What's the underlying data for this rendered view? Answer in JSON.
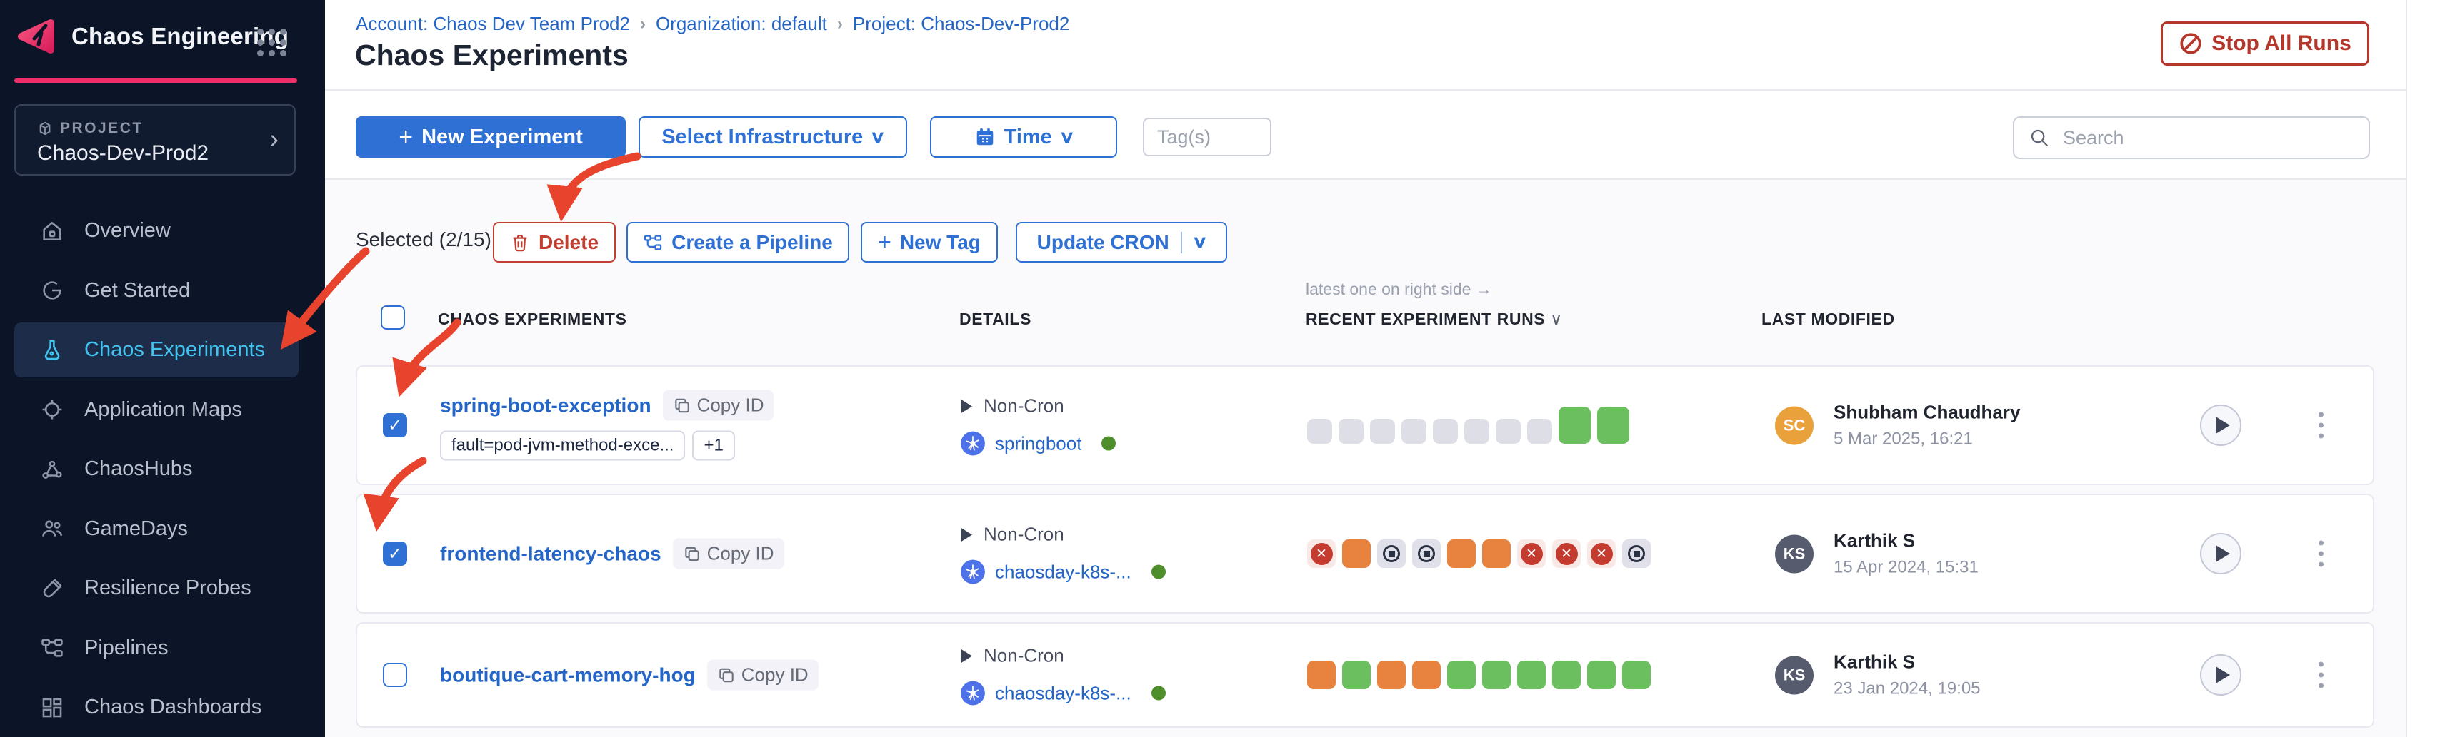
{
  "colors": {
    "primary_blue": "#2E70D4",
    "link_blue": "#2465C8",
    "brand_pink": "#EE2F68",
    "danger_red": "#B5362A",
    "delete_red": "#C23E31",
    "run_green": "#6CBF5F",
    "run_orange": "#E8833F",
    "run_gray": "#DDDEE6",
    "run_fail_red": "#C43C30",
    "kubernetes_blue": "#4D71E8",
    "annotation_red": "#E8432C",
    "sidebar_bg": "#0B1527",
    "active_item_text": "#41C4F1"
  },
  "sidebar": {
    "app_title": "Chaos Engineering",
    "project_label": "PROJECT",
    "project_name": "Chaos-Dev-Prod2",
    "items": [
      {
        "label": "Overview",
        "icon": "home",
        "active": false
      },
      {
        "label": "Get Started",
        "icon": "get-started",
        "active": false
      },
      {
        "label": "Chaos Experiments",
        "icon": "flask",
        "active": true
      },
      {
        "label": "Application Maps",
        "icon": "application-maps",
        "active": false
      },
      {
        "label": "ChaosHubs",
        "icon": "chaoshubs",
        "active": false
      },
      {
        "label": "GameDays",
        "icon": "gamedays",
        "active": false
      },
      {
        "label": "Resilience Probes",
        "icon": "resilience-probes",
        "active": false
      },
      {
        "label": "Pipelines",
        "icon": "pipelines",
        "active": false
      },
      {
        "label": "Chaos Dashboards",
        "icon": "dashboards",
        "active": false
      }
    ]
  },
  "breadcrumb": {
    "items": [
      "Account: Chaos Dev Team Prod2",
      "Organization: default",
      "Project: Chaos-Dev-Prod2"
    ]
  },
  "header": {
    "title": "Chaos Experiments",
    "stop_all_runs": "Stop All Runs"
  },
  "toolbar": {
    "new_experiment": "New Experiment",
    "select_infrastructure": "Select Infrastructure",
    "time": "Time",
    "tags_placeholder": "Tag(s)",
    "search_placeholder": "Search"
  },
  "selection": {
    "label": "Selected (2/15)",
    "delete": "Delete",
    "create_pipeline": "Create a Pipeline",
    "new_tag": "New Tag",
    "update_cron": "Update CRON"
  },
  "table": {
    "note": "latest one on right side →",
    "headers": {
      "experiments": "CHAOS EXPERIMENTS",
      "details": "DETAILS",
      "recent_runs": "RECENT EXPERIMENT RUNS",
      "last_modified": "LAST MODIFIED"
    }
  },
  "rows": [
    {
      "name": "spring-boot-exception",
      "copy_label": "Copy ID",
      "tags": [
        "fault=pod-jvm-method-exce...",
        "+1"
      ],
      "schedule": "Non-Cron",
      "infra": "springboot",
      "infra_status": "active",
      "checked": true,
      "runs": [
        "skipped",
        "skipped",
        "skipped",
        "skipped",
        "skipped",
        "skipped",
        "skipped",
        "skipped",
        "passed-tall",
        "passed-tall"
      ],
      "modified": {
        "initials": "SC",
        "avatar_color": "#E9A23B",
        "name": "Shubham Chaudhary",
        "date": "5 Mar 2025, 16:21"
      }
    },
    {
      "name": "frontend-latency-chaos",
      "copy_label": "Copy ID",
      "tags": [],
      "schedule": "Non-Cron",
      "infra": "chaosday-k8s-...",
      "infra_status": "active",
      "checked": true,
      "runs": [
        "failed",
        "running",
        "stopped",
        "stopped",
        "running",
        "running",
        "failed",
        "failed",
        "failed",
        "stopped"
      ],
      "modified": {
        "initials": "KS",
        "avatar_color": "#565B6E",
        "name": "Karthik S",
        "date": "15 Apr 2024, 15:31"
      }
    },
    {
      "name": "boutique-cart-memory-hog",
      "copy_label": "Copy ID",
      "tags": [],
      "schedule": "Non-Cron",
      "infra": "chaosday-k8s-...",
      "infra_status": "active",
      "checked": false,
      "runs": [
        "running",
        "passed",
        "running",
        "running",
        "passed",
        "passed",
        "passed",
        "passed",
        "passed",
        "passed"
      ],
      "modified": {
        "initials": "KS",
        "avatar_color": "#565B6E",
        "name": "Karthik S",
        "date": "23 Jan 2024, 19:05"
      }
    }
  ]
}
